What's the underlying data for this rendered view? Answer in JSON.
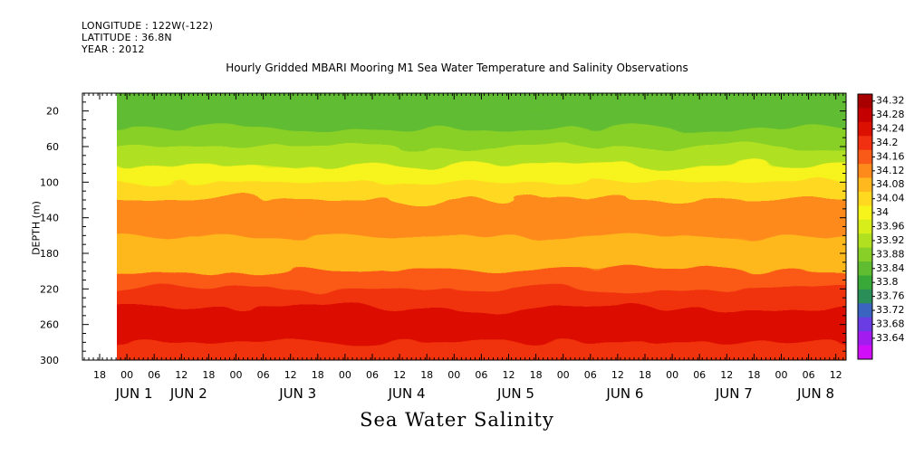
{
  "header": {
    "longitude": "LONGITUDE : 122W(-122)",
    "latitude": "LATITUDE : 36.8N",
    "year": "YEAR : 2012"
  },
  "chart_data": {
    "type": "heatmap",
    "title": "Hourly Gridded MBARI Mooring M1 Sea Water Temperature and Salinity Observations",
    "xlabel": "Sea Water Salinity",
    "ylabel": "DEPTH (m)",
    "y_range": [
      300,
      0
    ],
    "y_ticks": [
      20,
      60,
      100,
      140,
      180,
      220,
      260,
      300
    ],
    "x_ticks": [
      {
        "hour": "18"
      },
      {
        "hour": "00",
        "day": "JUN 1"
      },
      {
        "hour": "06"
      },
      {
        "hour": "12",
        "day": "JUN 2"
      },
      {
        "hour": "18"
      },
      {
        "hour": "00"
      },
      {
        "hour": "06"
      },
      {
        "hour": "12",
        "day": "JUN 3"
      },
      {
        "hour": "18"
      },
      {
        "hour": "00"
      },
      {
        "hour": "06"
      },
      {
        "hour": "12",
        "day": "JUN 4"
      },
      {
        "hour": "18"
      },
      {
        "hour": "00"
      },
      {
        "hour": "06"
      },
      {
        "hour": "12",
        "day": "JUN 5"
      },
      {
        "hour": "18"
      },
      {
        "hour": "00"
      },
      {
        "hour": "06"
      },
      {
        "hour": "12",
        "day": "JUN 6"
      },
      {
        "hour": "18"
      },
      {
        "hour": "00"
      },
      {
        "hour": "06"
      },
      {
        "hour": "12",
        "day": "JUN 7"
      },
      {
        "hour": "18"
      },
      {
        "hour": "00"
      },
      {
        "hour": "06",
        "day": "JUN 8"
      },
      {
        "hour": "12"
      }
    ],
    "colorbar": {
      "levels": [
        34.32,
        34.28,
        34.24,
        34.2,
        34.16,
        34.12,
        34.08,
        34.04,
        34,
        33.96,
        33.92,
        33.88,
        33.84,
        33.8,
        33.76,
        33.72,
        33.68,
        33.64
      ],
      "label_texts": [
        "34.32",
        "34.28",
        "34.24",
        "34.2",
        "34.16",
        "34.12",
        "34.08",
        "34.04",
        "34",
        "33.96",
        "33.92",
        "33.88",
        "33.84",
        "33.8",
        "33.76",
        "33.72",
        "33.68",
        "33.64"
      ],
      "colors_high_to_low": [
        "#a80000",
        "#c40000",
        "#dc1000",
        "#f03010",
        "#fa5a18",
        "#ff8a1c",
        "#ffb81e",
        "#ffd820",
        "#f6f41a",
        "#d8ee1a",
        "#b0e020",
        "#88d028",
        "#60bc30",
        "#38a838",
        "#2a8e58",
        "#3a64c0",
        "#6a3ce4",
        "#a21cf0",
        "#d00ef8"
      ]
    },
    "salinity_profile": [
      {
        "depth": 10,
        "value": 33.86
      },
      {
        "depth": 30,
        "value": 33.87
      },
      {
        "depth": 50,
        "value": 33.9
      },
      {
        "depth": 70,
        "value": 33.95
      },
      {
        "depth": 90,
        "value": 34.0
      },
      {
        "depth": 110,
        "value": 34.05
      },
      {
        "depth": 130,
        "value": 34.12
      },
      {
        "depth": 150,
        "value": 34.13
      },
      {
        "depth": 170,
        "value": 34.1
      },
      {
        "depth": 190,
        "value": 34.08
      },
      {
        "depth": 210,
        "value": 34.16
      },
      {
        "depth": 230,
        "value": 34.22
      },
      {
        "depth": 250,
        "value": 34.26
      },
      {
        "depth": 270,
        "value": 34.24
      },
      {
        "depth": 290,
        "value": 34.2
      }
    ]
  }
}
